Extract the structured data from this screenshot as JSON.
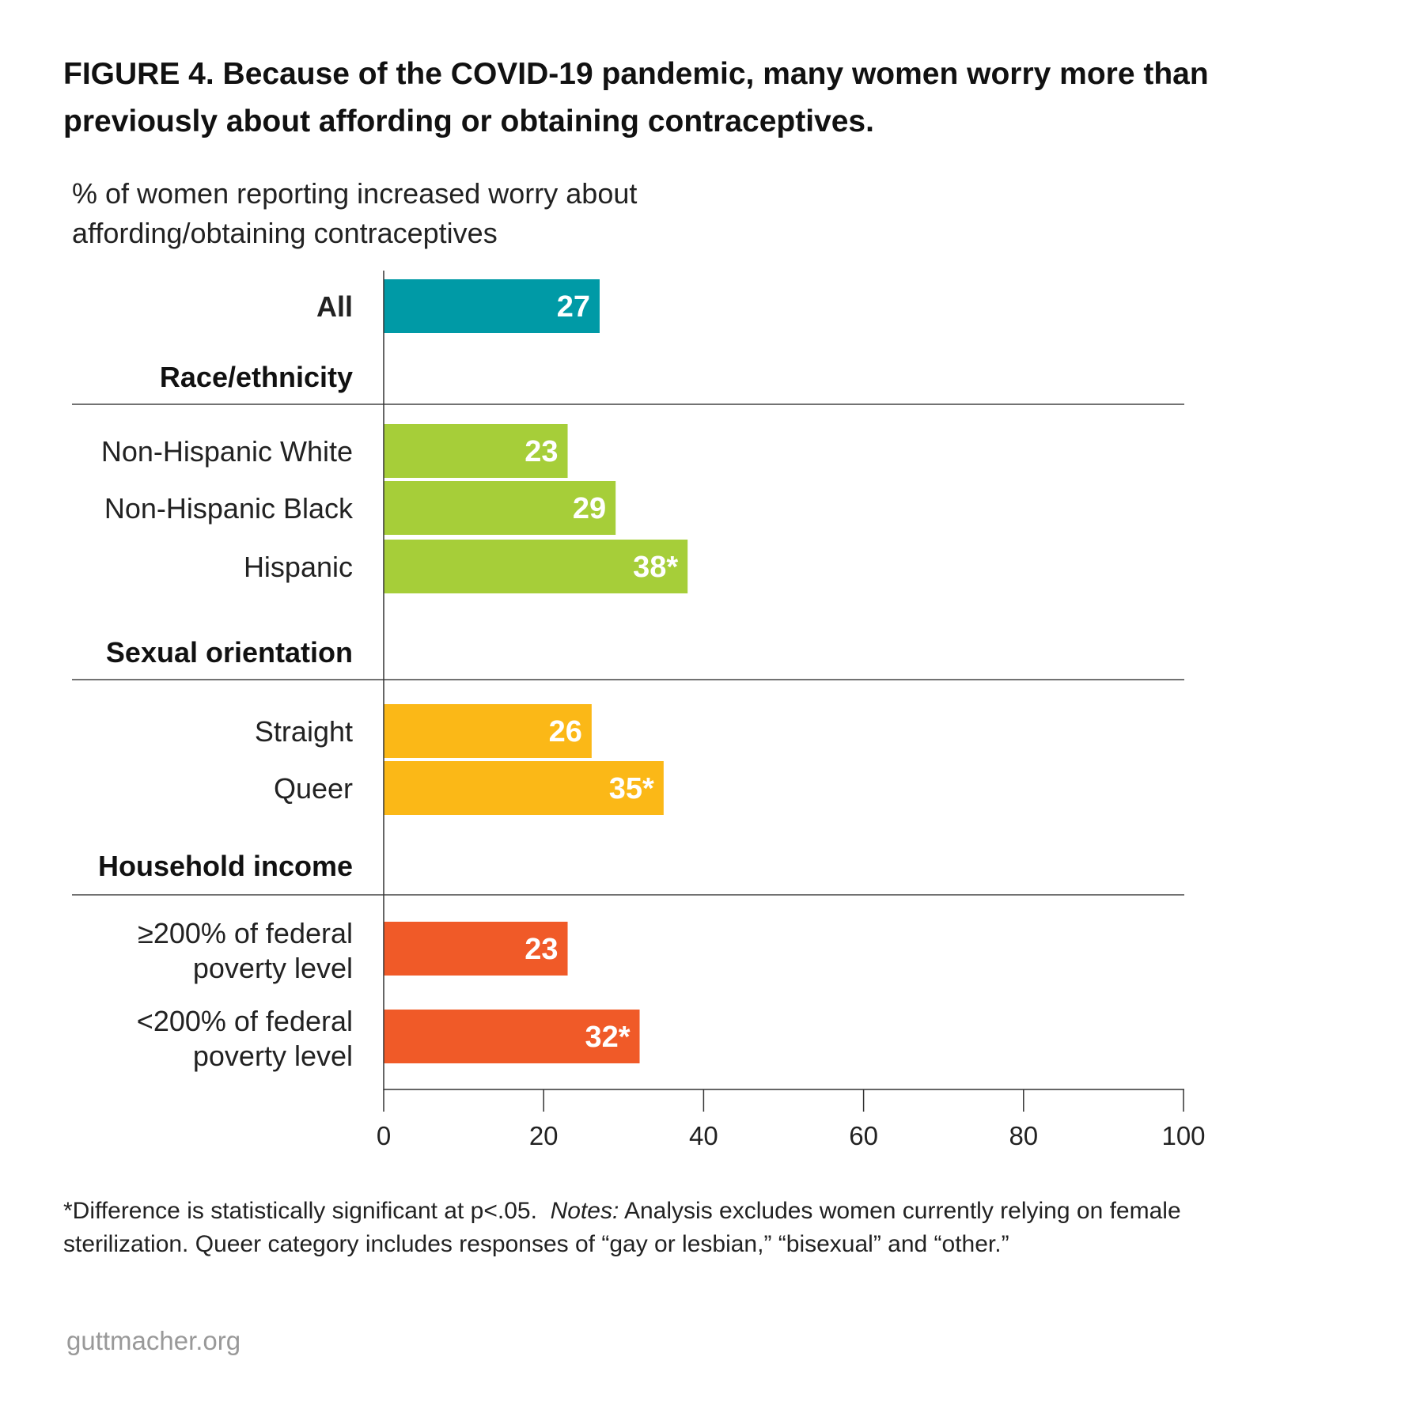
{
  "title": "FIGURE 4. Because of the COVID-19 pandemic, many women worry more than previously about affording or obtaining contraceptives.",
  "subtitle": "% of women reporting increased worry about affording/obtaining contraceptives",
  "chart_data": {
    "type": "bar",
    "orientation": "horizontal",
    "xlim": [
      0,
      100
    ],
    "xticks": [
      "0",
      "20",
      "40",
      "60",
      "80",
      "100"
    ],
    "groups": [
      {
        "heading": "",
        "color": "#009aa6",
        "bars": [
          {
            "category": "All",
            "value": 27,
            "label": "27"
          }
        ]
      },
      {
        "heading": "Race/ethnicity",
        "color": "#a6ce39",
        "bars": [
          {
            "category": "Non-Hispanic White",
            "value": 23,
            "label": "23"
          },
          {
            "category": "Non-Hispanic Black",
            "value": 29,
            "label": "29"
          },
          {
            "category": "Hispanic",
            "value": 38,
            "label": "38*"
          }
        ]
      },
      {
        "heading": "Sexual orientation",
        "color": "#fbb817",
        "bars": [
          {
            "category": "Straight",
            "value": 26,
            "label": "26"
          },
          {
            "category": "Queer",
            "value": 35,
            "label": "35*"
          }
        ]
      },
      {
        "heading": "Household income",
        "color": "#f05a28",
        "bars": [
          {
            "category": "≥200% of federal poverty level",
            "line1": "≥200% of federal",
            "line2": "poverty level",
            "value": 23,
            "label": "23"
          },
          {
            "category": "<200% of federal poverty level",
            "line1": "<200% of federal",
            "line2": "poverty level",
            "value": 32,
            "label": "32*"
          }
        ]
      }
    ]
  },
  "notes": {
    "significance": "*Difference is statistically significant at p<.05.",
    "notes_label": "Notes:",
    "notes_text": "Analysis excludes women currently relying on female sterilization. Queer category includes responses of “gay or lesbian,” “bisexual” and “other.”"
  },
  "source": "guttmacher.org"
}
